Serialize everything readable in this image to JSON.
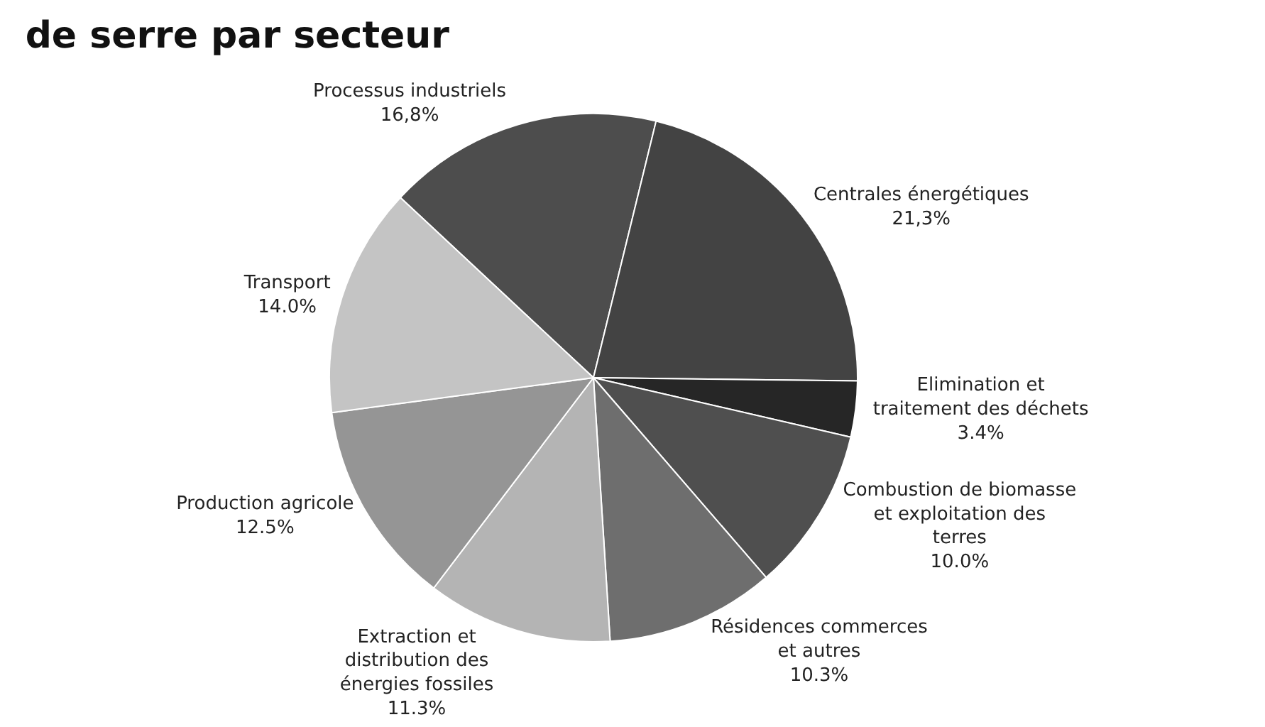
{
  "chart_data": {
    "type": "pie",
    "title": "de serre par secteur",
    "categories": [
      "Processus industriels",
      "Centrales énergétiques",
      "Elimination et traitement des déchets",
      "Combustion de biomasse et exploitation des terres",
      "Résidences commerces et autres",
      "Extraction et distribution des énergies fossiles",
      "Production agricole",
      "Transport"
    ],
    "values": [
      16.8,
      21.3,
      3.4,
      10.0,
      10.3,
      11.3,
      12.5,
      14.0
    ],
    "value_labels": [
      "16,8%",
      "21,3%",
      "3.4%",
      "10.0%",
      "10.3%",
      "11.3%",
      "12.5%",
      "14.0%"
    ],
    "colors": [
      "#4d4d4d",
      "#434343",
      "#262626",
      "#4f4f4f",
      "#6e6e6e",
      "#b4b4b4",
      "#959595",
      "#c4c4c4"
    ]
  }
}
